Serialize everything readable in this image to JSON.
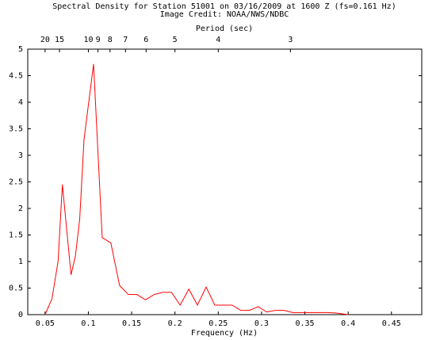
{
  "chart_data": {
    "type": "line",
    "title": "Spectral Density for Station 51001 on 03/16/2009 at 1600 Z (fs=0.161 Hz)",
    "subtitle": "Image Credit: NOAA/NWS/NDBC",
    "xlabel": "Frequency (Hz)",
    "x2label": "Period (sec)",
    "x": [
      0.05,
      0.058,
      0.065,
      0.07,
      0.08,
      0.085,
      0.09,
      0.095,
      0.106,
      0.116,
      0.126,
      0.136,
      0.146,
      0.156,
      0.166,
      0.176,
      0.186,
      0.196,
      0.206,
      0.216,
      0.226,
      0.236,
      0.246,
      0.256,
      0.266,
      0.276,
      0.286,
      0.296,
      0.306,
      0.316,
      0.326,
      0.336,
      0.346,
      0.356,
      0.366,
      0.376,
      0.386,
      0.396,
      0.4
    ],
    "series": [
      {
        "name": "Spectral Density",
        "color": "#ff0000",
        "values": [
          0,
          0.3,
          1.0,
          2.45,
          0.75,
          1.1,
          1.8,
          3.3,
          4.72,
          1.45,
          1.35,
          0.55,
          0.38,
          0.38,
          0.28,
          0.38,
          0.42,
          0.42,
          0.18,
          0.48,
          0.18,
          0.52,
          0.18,
          0.18,
          0.18,
          0.08,
          0.08,
          0.15,
          0.05,
          0.08,
          0.08,
          0.04,
          0.04,
          0.04,
          0.04,
          0.04,
          0.03,
          0.01,
          0
        ]
      }
    ],
    "xlim": [
      0.03,
      0.485
    ],
    "ylim": [
      0,
      5
    ],
    "xticks": [
      0.05,
      0.1,
      0.15,
      0.2,
      0.25,
      0.3,
      0.35,
      0.4,
      0.45
    ],
    "yticks": [
      0,
      0.5,
      1,
      1.5,
      2,
      2.5,
      3,
      3.5,
      4,
      4.5,
      5
    ],
    "x2ticks": [
      20,
      15,
      10,
      9,
      8,
      7,
      6,
      5,
      4,
      3
    ]
  }
}
